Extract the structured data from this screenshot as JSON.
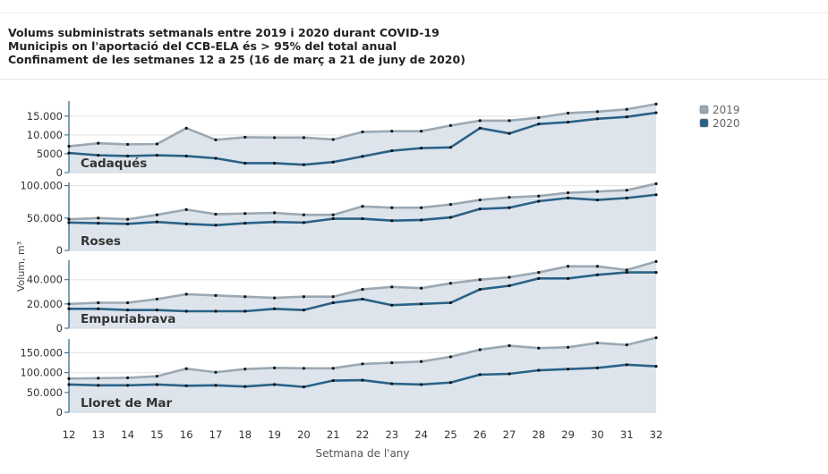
{
  "header": {
    "line1": "Volums subministrats setmanals entre 2019 i 2020 durant COVID-19",
    "line2": "Municipis on l'aportació del CCB-ELA és > 95% del total anual",
    "line3": "Confinament de les setmanes 12 a 25 (16 de març a 21 de juny de 2020)"
  },
  "colors": {
    "series_2019": "#9aa9b4",
    "series_2020": "#2a6288",
    "area_fill": "#dde4eb",
    "axis": "#2a6288"
  },
  "chart_data": {
    "type": "line",
    "xlabel": "Setmana de l'any",
    "ylabel": "Volum, m³",
    "x": [
      12,
      13,
      14,
      15,
      16,
      17,
      18,
      19,
      20,
      21,
      22,
      23,
      24,
      25,
      26,
      27,
      28,
      29,
      30,
      31,
      32
    ],
    "legend": {
      "position": "top-right",
      "entries": [
        "2019",
        "2020"
      ]
    },
    "panels": [
      {
        "name": "Cadaqués",
        "ylim": [
          0,
          19000
        ],
        "yticks": [
          0,
          5000,
          10000,
          15000
        ],
        "ytick_labels": [
          "0",
          "5000",
          "10.000",
          "15.000"
        ],
        "series": [
          {
            "name": "2019",
            "values": [
              7000,
              7800,
              7500,
              7600,
              11800,
              8700,
              9400,
              9300,
              9300,
              8800,
              10800,
              11000,
              11000,
              12500,
              13800,
              13800,
              14600,
              15800,
              16200,
              16800,
              18200
            ]
          },
          {
            "name": "2020",
            "values": [
              5200,
              4600,
              4400,
              4600,
              4400,
              3800,
              2500,
              2500,
              2100,
              2800,
              4300,
              5800,
              6500,
              6700,
              11800,
              10400,
              12900,
              13400,
              14300,
              14800,
              15900
            ]
          }
        ]
      },
      {
        "name": "Roses",
        "ylim": [
          0,
          105000
        ],
        "yticks": [
          0,
          50000,
          100000
        ],
        "ytick_labels": [
          "0",
          "50.000",
          "100.000"
        ],
        "series": [
          {
            "name": "2019",
            "values": [
              48000,
              50000,
              48000,
              55000,
              63000,
              56000,
              57000,
              58000,
              55000,
              55000,
              68000,
              66000,
              66000,
              71000,
              78000,
              82000,
              84000,
              89000,
              91000,
              93000,
              103000
            ]
          },
          {
            "name": "2020",
            "values": [
              43000,
              42000,
              41000,
              44000,
              41000,
              39000,
              42000,
              44000,
              43000,
              49000,
              49000,
              46000,
              47000,
              51000,
              64000,
              66000,
              76000,
              81000,
              78000,
              81000,
              86000
            ]
          }
        ]
      },
      {
        "name": "Empuriabrava",
        "ylim": [
          0,
          56000
        ],
        "yticks": [
          0,
          20000,
          40000
        ],
        "ytick_labels": [
          "0",
          "20.000",
          "40.000"
        ],
        "series": [
          {
            "name": "2019",
            "values": [
              20000,
              21000,
              21000,
              24000,
              28000,
              27000,
              26000,
              25000,
              26000,
              26000,
              32000,
              34000,
              33000,
              37000,
              40000,
              42000,
              46000,
              51000,
              51000,
              48000,
              55000
            ]
          },
          {
            "name": "2020",
            "values": [
              16000,
              16000,
              15000,
              15000,
              14000,
              14000,
              14000,
              16000,
              15000,
              21000,
              24000,
              19000,
              20000,
              21000,
              32000,
              35000,
              41000,
              41000,
              44000,
              46000,
              46000
            ]
          }
        ]
      },
      {
        "name": "Lloret de Mar",
        "ylim": [
          0,
          185000
        ],
        "yticks": [
          0,
          50000,
          100000,
          150000
        ],
        "ytick_labels": [
          "0",
          "50.000",
          "100.000",
          "150.000"
        ],
        "series": [
          {
            "name": "2019",
            "values": [
              85000,
              86000,
              87000,
              91000,
              110000,
              101000,
              109000,
              112000,
              111000,
              111000,
              122000,
              125000,
              128000,
              140000,
              158000,
              168000,
              162000,
              164000,
              175000,
              170000,
              188000
            ]
          },
          {
            "name": "2020",
            "values": [
              70000,
              68000,
              68000,
              70000,
              67000,
              68000,
              65000,
              70000,
              64000,
              80000,
              81000,
              72000,
              70000,
              75000,
              95000,
              97000,
              106000,
              109000,
              112000,
              120000,
              116000
            ]
          }
        ]
      }
    ]
  }
}
